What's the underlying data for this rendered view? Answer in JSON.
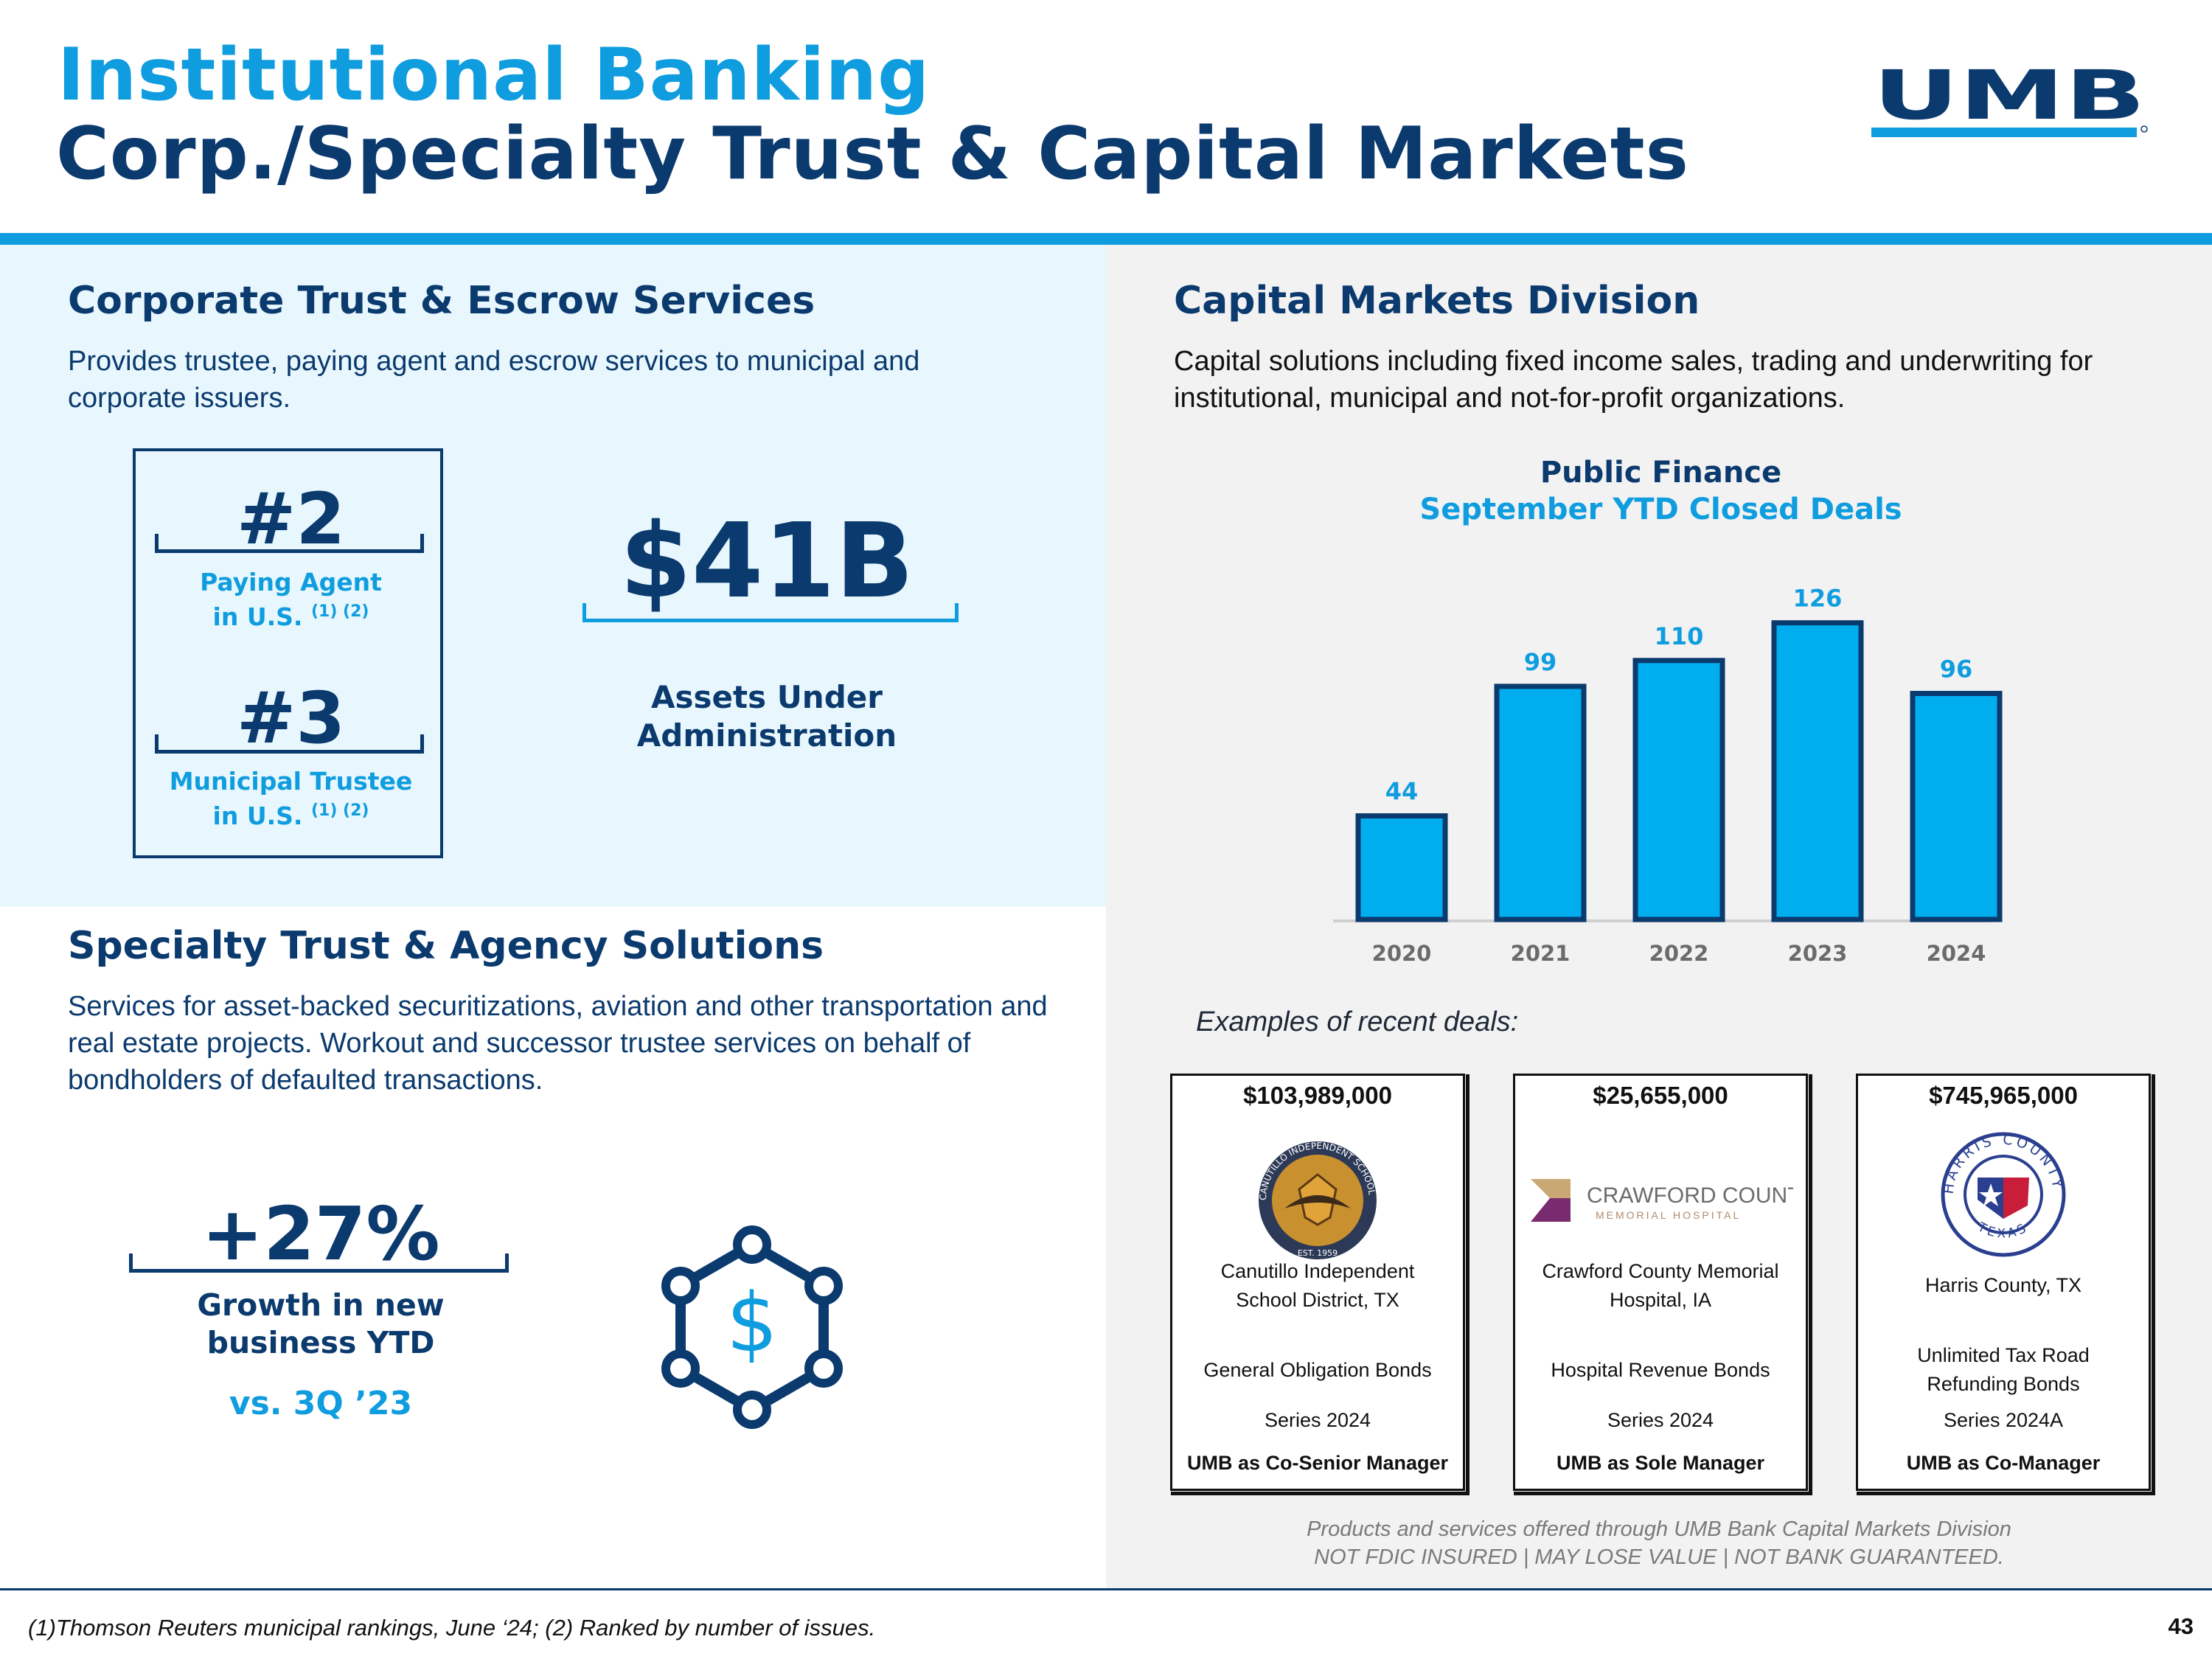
{
  "header": {
    "title_line1": "Institutional Banking",
    "title_line2": "Corp./Specialty Trust & Capital Markets",
    "logo_text": "UMB"
  },
  "corporate_trust": {
    "title": "Corporate Trust & Escrow Services",
    "description": "Provides trustee, paying agent and escrow services to municipal and corporate issuers.",
    "rankings": [
      {
        "rank": "#2",
        "label_line1": "Paying Agent",
        "label_line2": "in U.S.",
        "footnote_marks": "(1) (2)"
      },
      {
        "rank": "#3",
        "label_line1": "Municipal Trustee",
        "label_line2": "in U.S.",
        "footnote_marks": "(1) (2)"
      }
    ],
    "aum_value": "$41B",
    "aum_label_line1": "Assets Under",
    "aum_label_line2": "Administration"
  },
  "specialty_trust": {
    "title": "Specialty Trust & Agency Solutions",
    "description": "Services for asset-backed securitizations, aviation and other transportation and real estate projects. Workout and successor trustee services on behalf of bondholders of defaulted transactions.",
    "growth_value": "+27%",
    "growth_label_line1": "Growth in new",
    "growth_label_line2": "business YTD",
    "growth_comparison": "vs. 3Q ’23",
    "icon": "network-dollar-icon"
  },
  "capital_markets": {
    "title": "Capital Markets Division",
    "description": "Capital solutions including fixed income sales, trading and underwriting for institutional, municipal and not-for-profit organizations.",
    "examples_label": "Examples of recent deals:",
    "deals": [
      {
        "amount": "$103,989,000",
        "issuer_line1": "Canutillo Independent",
        "issuer_line2": "School District, TX",
        "bond_line1": "General Obligation Bonds",
        "bond_line2": "",
        "series": "Series 2024",
        "role": "UMB as Co-Senior Manager",
        "logo": "canutillo-isd-seal",
        "logo_text_top": "CANUTILLO INDEPENDENT SCHOOL DISTRICT",
        "logo_text_est": "EST. 1959"
      },
      {
        "amount": "$25,655,000",
        "issuer_line1": "Crawford County Memorial",
        "issuer_line2": "Hospital, IA",
        "bond_line1": "Hospital Revenue Bonds",
        "bond_line2": "",
        "series": "Series 2024",
        "role": "UMB as Sole Manager",
        "logo": "crawford-county-logo",
        "logo_text_top": "CRAWFORD COUNTY",
        "logo_text_est": "MEMORIAL HOSPITAL"
      },
      {
        "amount": "$745,965,000",
        "issuer_line1": "Harris County, TX",
        "issuer_line2": "",
        "bond_line1": "Unlimited Tax Road",
        "bond_line2": "Refunding Bonds",
        "series": "Series 2024A",
        "role": "UMB as Co-Manager",
        "logo": "harris-county-seal",
        "logo_text_top": "HARRIS COUNTY",
        "logo_text_est": "TEXAS"
      }
    ],
    "disclosure_line1": "Products and services offered through UMB Bank Capital Markets Division",
    "disclosure_line2": "NOT FDIC INSURED | MAY LOSE VALUE  | NOT BANK GUARANTEED."
  },
  "chart_data": {
    "type": "bar",
    "title": "Public Finance",
    "subtitle": "September YTD Closed Deals",
    "categories": [
      "2020",
      "2021",
      "2022",
      "2023",
      "2024"
    ],
    "values": [
      44,
      99,
      110,
      126,
      96
    ],
    "xlabel": "",
    "ylabel": "",
    "ylim": [
      0,
      140
    ],
    "grid": false,
    "bar_color": "#00aeef",
    "bar_edge_color": "#0b3a6e",
    "label_color": "#0f9ddf"
  },
  "footer": {
    "footnote": "(1)Thomson Reuters municipal rankings, June ‘24; (2) Ranked by number of issues.",
    "page_number": "43"
  },
  "colors": {
    "navy": "#0b3a6e",
    "blue": "#0f9ddf",
    "light_panel": "#e8f7fd",
    "gray_panel": "#f2f2f2"
  }
}
